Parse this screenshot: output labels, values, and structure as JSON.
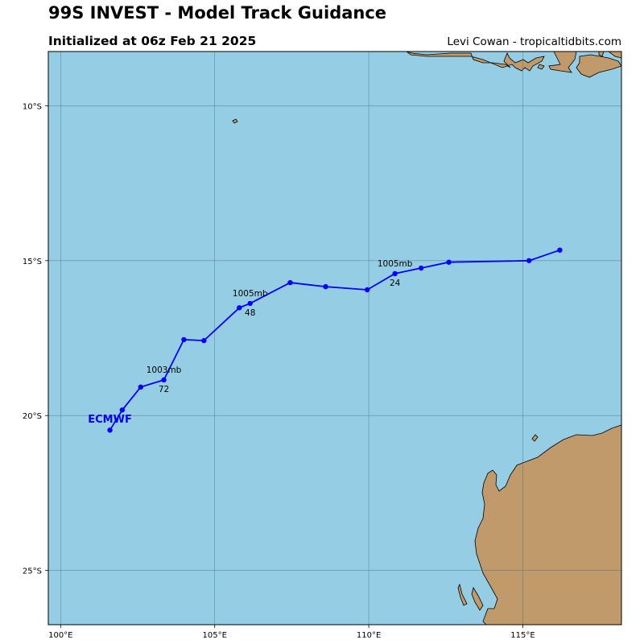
{
  "header": {
    "title": "99S INVEST - Model Track Guidance",
    "subtitle": "Initialized at 06z Feb 21 2025",
    "credit": "Levi Cowan - tropicaltidbits.com"
  },
  "colors": {
    "ocean": "#94cde4",
    "land": "#c19a6b",
    "track": "#0000ff",
    "grid": "#4f6f7a"
  },
  "chart_data": {
    "type": "map-track",
    "lon_range": [
      99.6,
      118.2
    ],
    "lat_range": [
      -26.75,
      -8.25
    ],
    "lon_ticks": [
      {
        "value": 100,
        "label": "100°E"
      },
      {
        "value": 105,
        "label": "105°E"
      },
      {
        "value": 110,
        "label": "110°E"
      },
      {
        "value": 115,
        "label": "115°E"
      }
    ],
    "lat_ticks": [
      {
        "value": -10,
        "label": "10°S"
      },
      {
        "value": -15,
        "label": "15°S"
      },
      {
        "value": -20,
        "label": "20°S"
      },
      {
        "value": -25,
        "label": "25°S"
      }
    ],
    "grid": true,
    "model": "ECMWF",
    "track": [
      {
        "lon": 116.2,
        "lat": -14.66
      },
      {
        "lon": 115.2,
        "lat": -15.0
      },
      {
        "lon": 112.6,
        "lat": -15.05
      },
      {
        "lon": 111.7,
        "lat": -15.24
      },
      {
        "lon": 110.85,
        "lat": -15.42
      },
      {
        "lon": 109.95,
        "lat": -15.94
      },
      {
        "lon": 108.6,
        "lat": -15.84
      },
      {
        "lon": 107.45,
        "lat": -15.71
      },
      {
        "lon": 106.15,
        "lat": -16.38
      },
      {
        "lon": 105.8,
        "lat": -16.52
      },
      {
        "lon": 104.65,
        "lat": -17.58
      },
      {
        "lon": 104.0,
        "lat": -17.55
      },
      {
        "lon": 103.35,
        "lat": -18.85
      },
      {
        "lon": 102.6,
        "lat": -19.08
      },
      {
        "lon": 102.0,
        "lat": -19.82
      },
      {
        "lon": 101.6,
        "lat": -20.47
      }
    ],
    "annotations": [
      {
        "pressure": "1005mb",
        "hour": "24",
        "lon": 110.85,
        "lat": -15.42
      },
      {
        "pressure": "1005mb",
        "hour": "48",
        "lon": 106.15,
        "lat": -16.38
      },
      {
        "pressure": "1003mb",
        "hour": "72",
        "lon": 103.35,
        "lat": -18.85
      }
    ],
    "model_label_position": {
      "lon": 101.6,
      "lat": -20.1
    }
  }
}
